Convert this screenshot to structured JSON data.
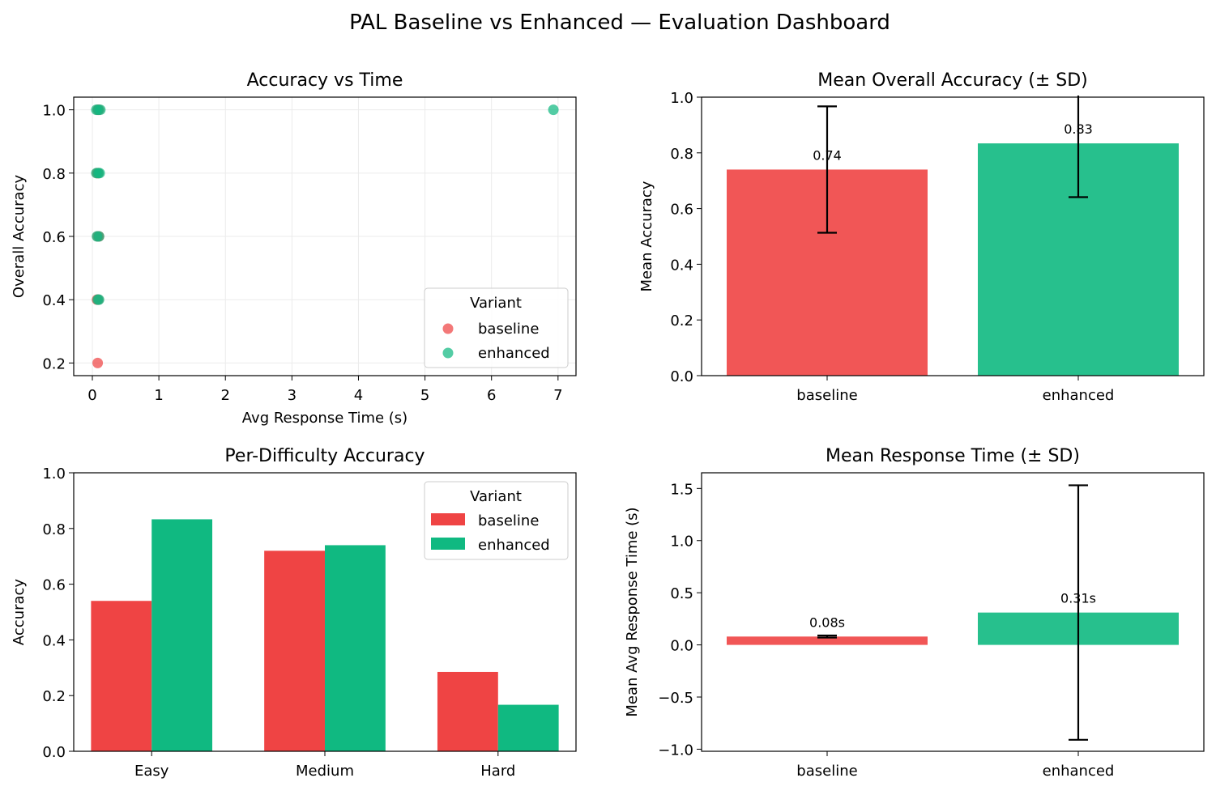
{
  "suptitle": "PAL Baseline vs Enhanced — Evaluation Dashboard",
  "colors": {
    "baseline": "#ef4444",
    "enhanced": "#10b981",
    "grid": "#ebebeb",
    "errorbar": "#000000"
  },
  "chart_data": [
    {
      "id": "scatter",
      "type": "scatter",
      "title": "Accuracy vs Time",
      "xlabel": "Avg Response Time (s)",
      "ylabel": "Overall Accuracy",
      "xlim": [
        -0.28,
        7.27
      ],
      "ylim": [
        0.16,
        1.04
      ],
      "xticks": [
        0,
        1,
        2,
        3,
        4,
        5,
        6,
        7
      ],
      "yticks": [
        0.2,
        0.4,
        0.6,
        0.8,
        1.0
      ],
      "grid": true,
      "legend": {
        "title": "Variant",
        "position": "lower-right"
      },
      "series": [
        {
          "name": "baseline",
          "points": [
            [
              0.08,
              0.2
            ],
            [
              0.07,
              0.4
            ],
            [
              0.09,
              0.4
            ],
            [
              0.08,
              0.6
            ],
            [
              0.1,
              0.6
            ],
            [
              0.07,
              0.8
            ],
            [
              0.09,
              0.8
            ],
            [
              0.08,
              1.0
            ],
            [
              0.1,
              1.0
            ]
          ]
        },
        {
          "name": "enhanced",
          "points": [
            [
              0.08,
              0.4
            ],
            [
              0.1,
              0.4
            ],
            [
              0.07,
              0.6
            ],
            [
              0.1,
              0.6
            ],
            [
              0.06,
              0.8
            ],
            [
              0.09,
              0.8
            ],
            [
              0.11,
              0.8
            ],
            [
              0.06,
              1.0
            ],
            [
              0.09,
              1.0
            ],
            [
              0.12,
              1.0
            ],
            [
              6.93,
              1.0
            ]
          ]
        }
      ]
    },
    {
      "id": "mean-accuracy",
      "type": "bar",
      "title": "Mean Overall Accuracy (± SD)",
      "xlabel": "",
      "ylabel": "Mean Accuracy",
      "categories": [
        "baseline",
        "enhanced"
      ],
      "values": [
        0.74,
        0.834
      ],
      "errors": [
        0.227,
        0.193
      ],
      "value_labels": [
        "0.74",
        "0.83"
      ],
      "ylim": [
        0,
        1.0
      ],
      "yticks": [
        0.0,
        0.2,
        0.4,
        0.6,
        0.8,
        1.0
      ],
      "grid": false
    },
    {
      "id": "per-difficulty",
      "type": "bar",
      "title": "Per-Difficulty Accuracy",
      "xlabel": "",
      "ylabel": "Accuracy",
      "categories": [
        "Easy",
        "Medium",
        "Hard"
      ],
      "series": [
        {
          "name": "baseline",
          "values": [
            0.54,
            0.72,
            0.285
          ]
        },
        {
          "name": "enhanced",
          "values": [
            0.833,
            0.74,
            0.167
          ]
        }
      ],
      "ylim": [
        0,
        1.0
      ],
      "yticks": [
        0.0,
        0.2,
        0.4,
        0.6,
        0.8,
        1.0
      ],
      "grid": false,
      "legend": {
        "title": "Variant",
        "position": "top-right"
      }
    },
    {
      "id": "mean-time",
      "type": "bar",
      "title": "Mean Response Time (± SD)",
      "xlabel": "",
      "ylabel": "Mean Avg Response Time (s)",
      "categories": [
        "baseline",
        "enhanced"
      ],
      "values": [
        0.08,
        0.31
      ],
      "errors": [
        0.01,
        1.22
      ],
      "value_labels": [
        "0.08s",
        "0.31s"
      ],
      "ylim": [
        -1.02,
        1.65
      ],
      "yticks": [
        -1.0,
        -0.5,
        0.0,
        0.5,
        1.0,
        1.5
      ],
      "grid": false
    }
  ]
}
